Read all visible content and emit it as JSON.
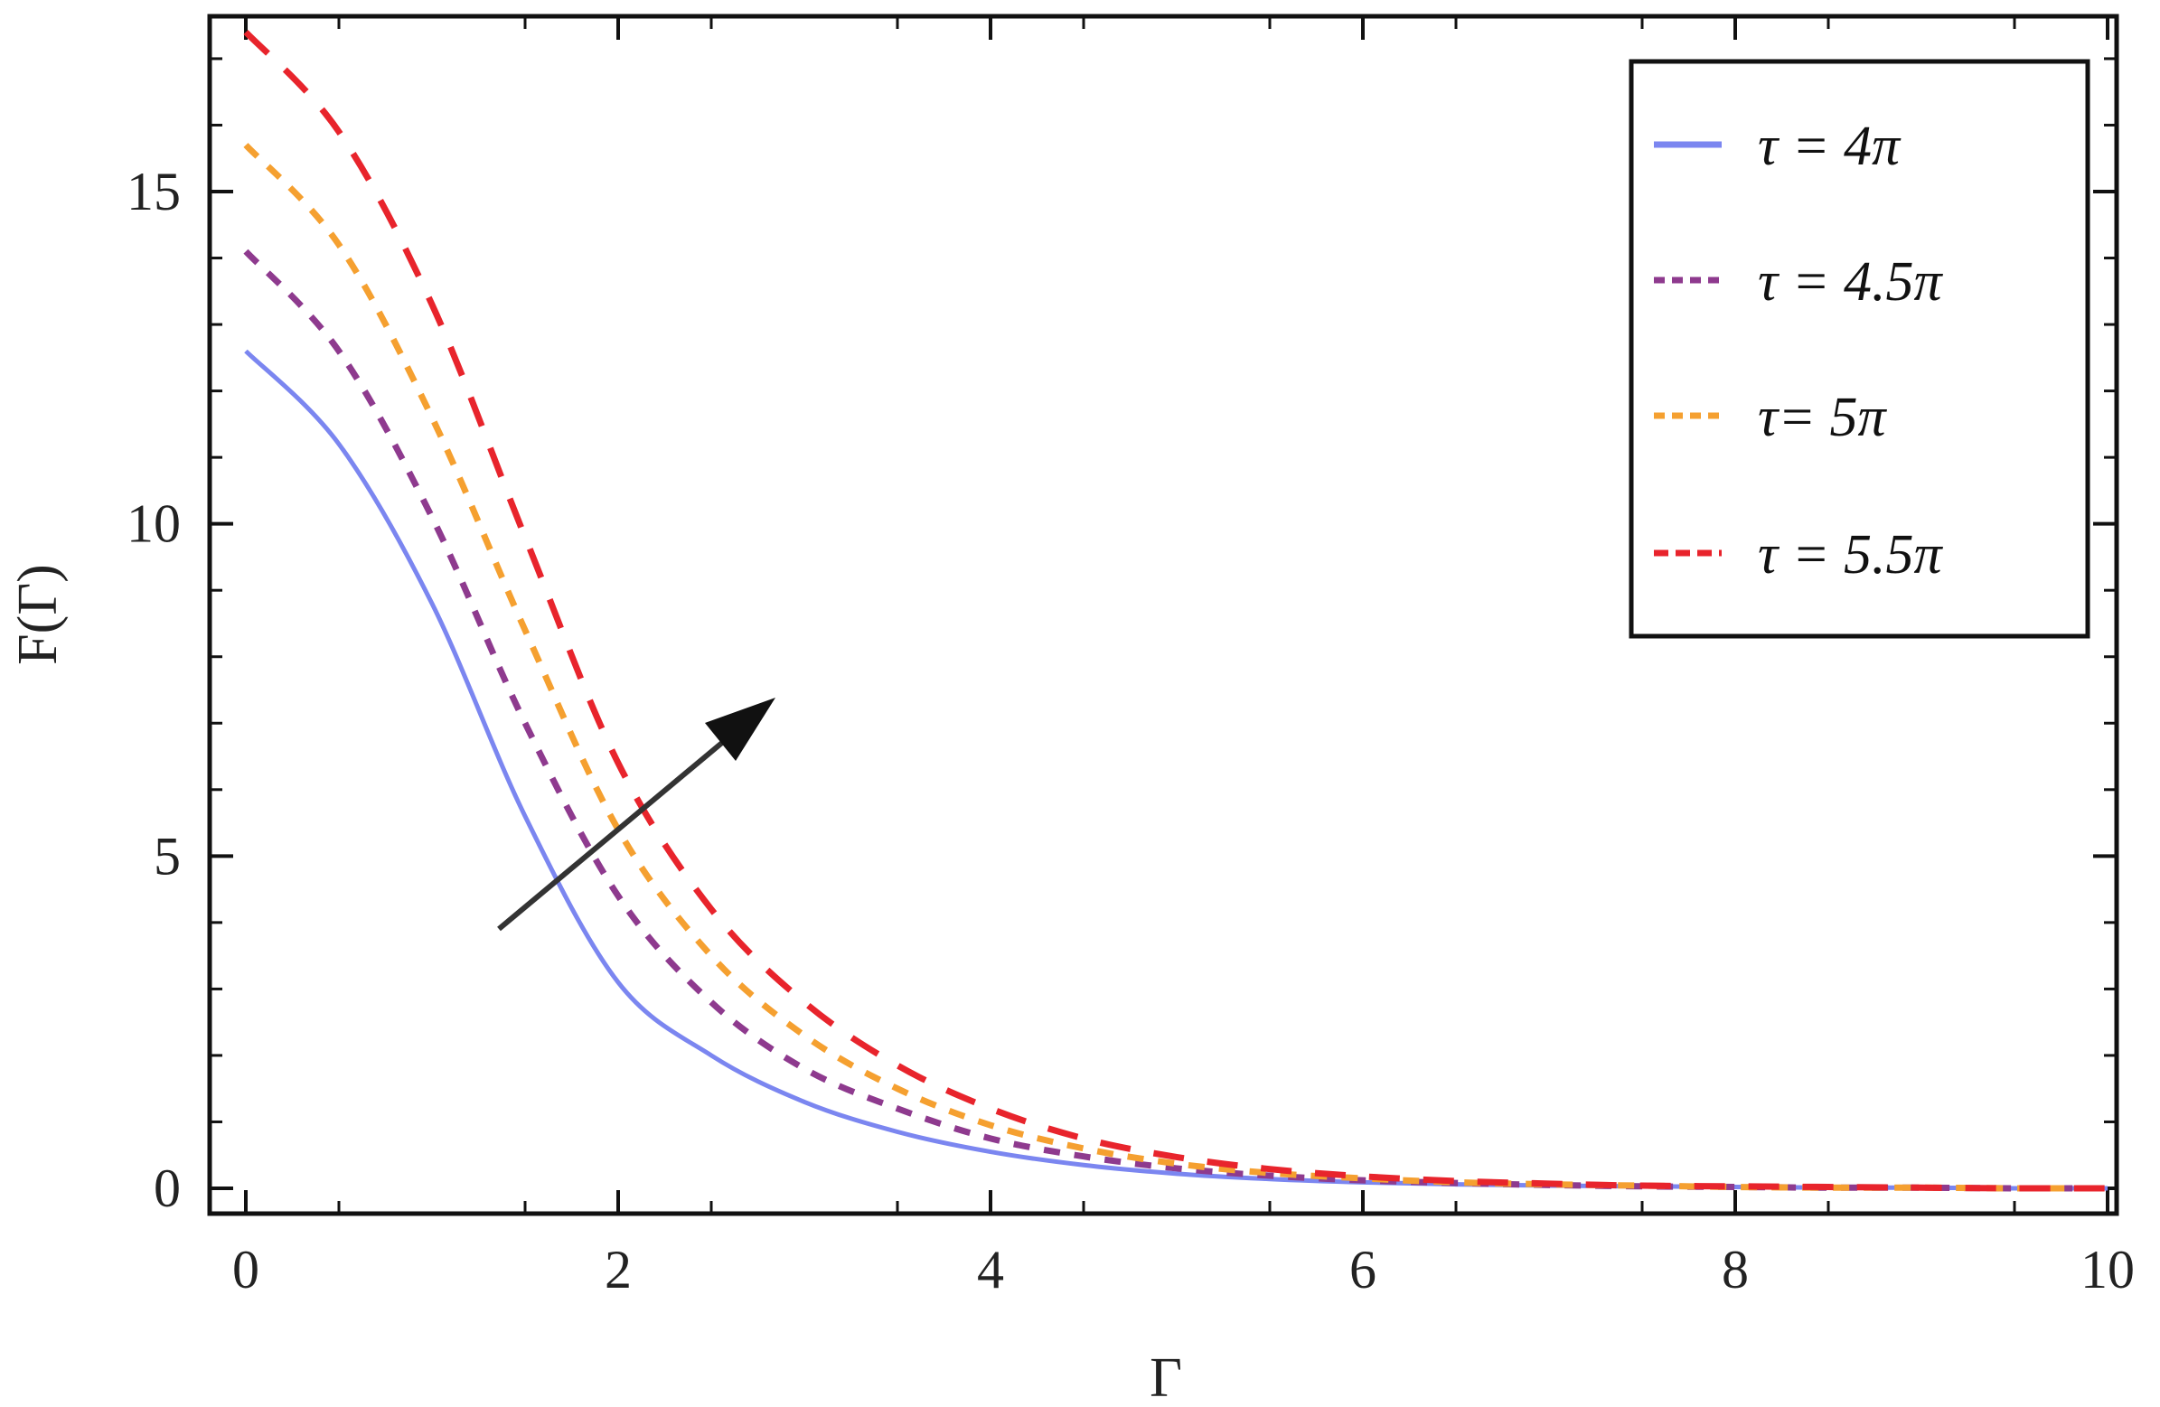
{
  "chart_data": {
    "type": "line",
    "xlabel": "Γ",
    "ylabel": "F(Γ)",
    "xlim": [
      0,
      10
    ],
    "ylim": [
      -0.3,
      17.7
    ],
    "xticks": [
      0,
      2,
      4,
      6,
      8,
      10
    ],
    "yticks": [
      0,
      5,
      10,
      15
    ],
    "grid": false,
    "legend_position": "top-right",
    "annotation": "arrow indicating increasing τ",
    "x": [
      0,
      0.5,
      1,
      1.5,
      2,
      2.5,
      3,
      3.5,
      4,
      4.5,
      5,
      5.5,
      6,
      6.5,
      7,
      7.5,
      8,
      8.5,
      9,
      9.5,
      10
    ],
    "series": [
      {
        "name": "τ = 4π",
        "color": "#7b86f0",
        "dash": "solid",
        "values": [
          12.6,
          11.2,
          8.8,
          5.6,
          3.1,
          2.0,
          1.3,
          0.85,
          0.55,
          0.35,
          0.22,
          0.14,
          0.09,
          0.06,
          0.04,
          0.03,
          0.02,
          0.01,
          0.01,
          0.0,
          0.0
        ]
      },
      {
        "name": "τ = 4.5π",
        "color": "#8e3a8e",
        "dash": "dash",
        "values": [
          14.1,
          12.6,
          10.1,
          7.0,
          4.4,
          2.8,
          1.8,
          1.2,
          0.75,
          0.48,
          0.3,
          0.19,
          0.12,
          0.08,
          0.05,
          0.03,
          0.02,
          0.01,
          0.01,
          0.0,
          0.0
        ]
      },
      {
        "name": "τ= 5π",
        "color": "#f5a030",
        "dash": "dash",
        "values": [
          15.7,
          14.2,
          11.6,
          8.4,
          5.4,
          3.5,
          2.3,
          1.5,
          0.95,
          0.6,
          0.37,
          0.23,
          0.15,
          0.09,
          0.06,
          0.04,
          0.02,
          0.01,
          0.01,
          0.0,
          0.0
        ]
      },
      {
        "name": "τ = 5.5π",
        "color": "#e8242c",
        "dash": "longdash",
        "values": [
          17.4,
          15.9,
          13.3,
          9.8,
          6.4,
          4.2,
          2.8,
          1.85,
          1.2,
          0.75,
          0.47,
          0.29,
          0.18,
          0.11,
          0.07,
          0.04,
          0.03,
          0.02,
          0.01,
          0.0,
          0.0
        ]
      }
    ]
  }
}
